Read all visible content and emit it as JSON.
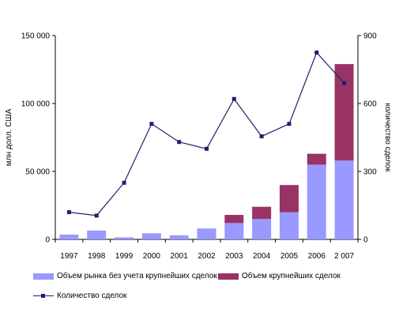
{
  "chart_data": {
    "type": "bar",
    "categories": [
      "1997",
      "1998",
      "1999",
      "2000",
      "2001",
      "2002",
      "2003",
      "2004",
      "2005",
      "2006",
      "2 007"
    ],
    "series": [
      {
        "name": "Объем рынка без учета крупнейших сделок",
        "kind": "bar-stacked",
        "axis": "left",
        "color": "#9999ff",
        "values": [
          3500,
          6500,
          1500,
          4500,
          3000,
          8000,
          12000,
          15000,
          20000,
          55000,
          58000
        ]
      },
      {
        "name": "Объем крупнейших сделок",
        "kind": "bar-stacked",
        "axis": "left",
        "color": "#993366",
        "values": [
          0,
          0,
          0,
          0,
          0,
          0,
          6000,
          9000,
          20000,
          8000,
          71000
        ]
      },
      {
        "name": "Количество сделок",
        "kind": "line",
        "axis": "right",
        "color": "#1f1f6e",
        "values": [
          120,
          105,
          250,
          510,
          430,
          400,
          620,
          455,
          510,
          825,
          690
        ]
      }
    ],
    "ylabel": "млн долл. США",
    "ylabel_right": "количество сделок",
    "ylim": [
      0,
      150000
    ],
    "ylim_right": [
      0,
      900
    ],
    "yticks": [
      "0",
      "50 000",
      "100 000",
      "150 000"
    ],
    "yticks_right": [
      "0",
      "300",
      "600",
      "900"
    ],
    "grid": false,
    "legend_position": "bottom"
  }
}
